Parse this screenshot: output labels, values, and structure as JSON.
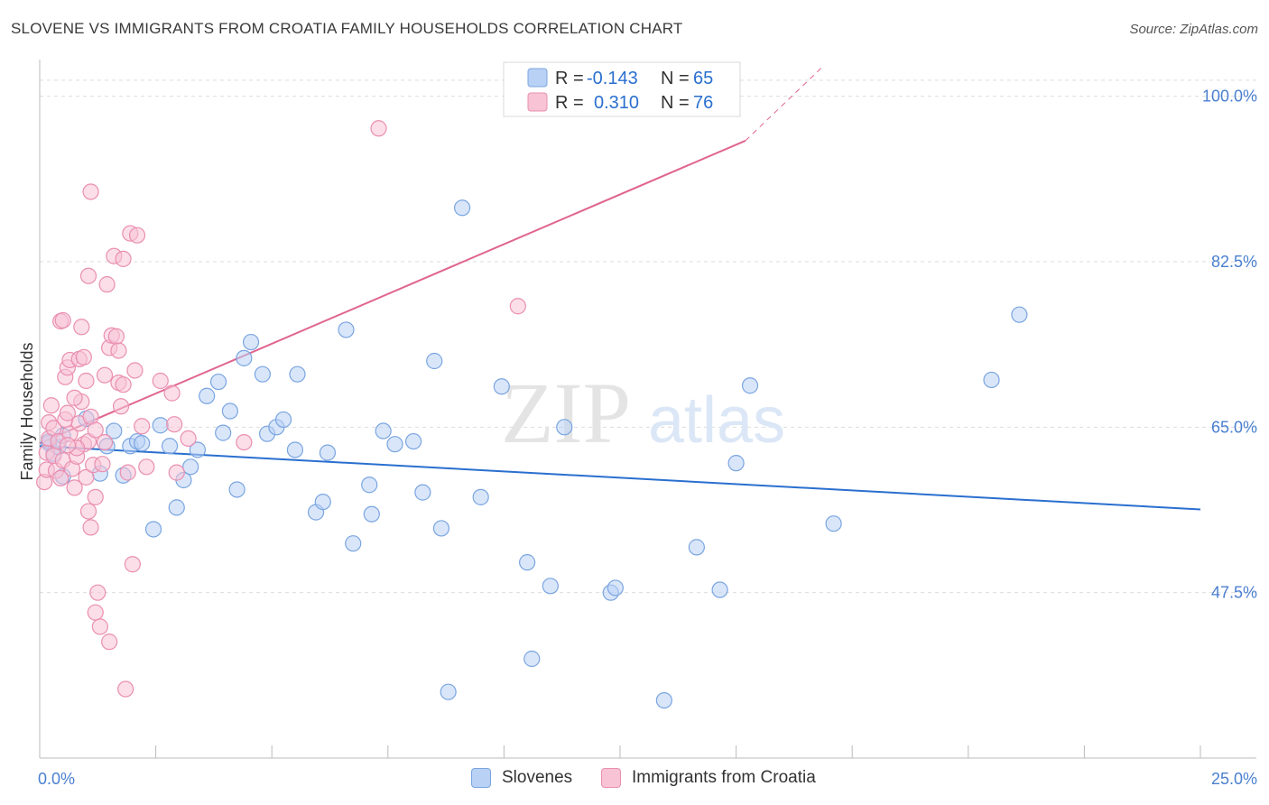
{
  "header": {
    "title": "SLOVENE VS IMMIGRANTS FROM CROATIA FAMILY HOUSEHOLDS CORRELATION CHART",
    "source": "Source: ZipAtlas.com"
  },
  "watermark": {
    "zip": "ZIP",
    "atlas": "atlas"
  },
  "colors": {
    "blue_fill": "#b9d1f5",
    "blue_stroke": "#7aa5e0",
    "blue_line": "#2a6fcf",
    "pink_fill": "#f8c3d5",
    "pink_stroke": "#ea8fb0",
    "pink_line": "#e0648f",
    "tick_text": "#4a7fd0",
    "grid": "#dddddd"
  },
  "legend": {
    "rows": [
      {
        "r_label": "R =",
        "r_value": "-0.143",
        "n_label": "N =",
        "n_value": "65"
      },
      {
        "r_label": "R =",
        "r_value": "0.310",
        "n_label": "N =",
        "n_value": "76"
      }
    ]
  },
  "bottom_legend": {
    "series1": "Slovenes",
    "series2": "Immigrants from Croatia"
  },
  "chart_data": {
    "type": "scatter",
    "title": "SLOVENE VS IMMIGRANTS FROM CROATIA FAMILY HOUSEHOLDS CORRELATION CHART",
    "xlabel": "",
    "ylabel": "Family Households",
    "xlim": [
      0,
      25
    ],
    "ylim": [
      30,
      103.5
    ],
    "x_ticks": [
      0,
      2.5,
      5,
      7.5,
      10,
      12.5,
      15,
      17.5,
      20,
      22.5,
      25
    ],
    "x_tick_labels": {
      "0": "0.0%",
      "25": "25.0%"
    },
    "y_ticks": [
      47.5,
      65.0,
      82.5,
      100.0
    ],
    "y_tick_labels": [
      "47.5%",
      "65.0%",
      "82.5%",
      "100.0%"
    ],
    "grid": true,
    "series": [
      {
        "name": "Slovenes",
        "R": -0.143,
        "N": 65,
        "trend": {
          "x0": 0,
          "y0": 63.0,
          "x1": 25,
          "y1": 56.3
        },
        "points": [
          [
            0.2,
            63.3
          ],
          [
            0.3,
            62.2
          ],
          [
            0.2,
            63.5
          ],
          [
            0.4,
            62.9
          ],
          [
            0.5,
            64.1
          ],
          [
            0.5,
            59.8
          ],
          [
            1.0,
            65.9
          ],
          [
            1.3,
            60.1
          ],
          [
            1.45,
            63.0
          ],
          [
            1.6,
            64.6
          ],
          [
            1.8,
            59.9
          ],
          [
            1.95,
            63.0
          ],
          [
            2.1,
            63.5
          ],
          [
            2.2,
            63.3
          ],
          [
            2.45,
            54.2
          ],
          [
            2.6,
            65.2
          ],
          [
            2.8,
            63.0
          ],
          [
            2.95,
            56.5
          ],
          [
            3.1,
            59.4
          ],
          [
            3.25,
            60.8
          ],
          [
            3.4,
            62.6
          ],
          [
            3.6,
            68.3
          ],
          [
            3.85,
            69.8
          ],
          [
            3.95,
            64.4
          ],
          [
            4.1,
            66.7
          ],
          [
            4.25,
            58.4
          ],
          [
            4.4,
            72.3
          ],
          [
            4.55,
            74.0
          ],
          [
            4.8,
            70.6
          ],
          [
            4.9,
            64.3
          ],
          [
            5.1,
            65.0
          ],
          [
            5.25,
            65.8
          ],
          [
            5.55,
            70.6
          ],
          [
            5.5,
            62.6
          ],
          [
            5.95,
            56.0
          ],
          [
            6.1,
            57.1
          ],
          [
            6.2,
            62.3
          ],
          [
            6.6,
            75.3
          ],
          [
            6.75,
            52.7
          ],
          [
            7.1,
            58.9
          ],
          [
            7.15,
            55.8
          ],
          [
            7.4,
            64.6
          ],
          [
            7.65,
            63.2
          ],
          [
            8.05,
            63.5
          ],
          [
            8.25,
            58.1
          ],
          [
            8.5,
            72.0
          ],
          [
            8.65,
            54.3
          ],
          [
            8.8,
            37.0
          ],
          [
            9.1,
            88.2
          ],
          [
            9.5,
            57.6
          ],
          [
            9.95,
            69.3
          ],
          [
            10.5,
            50.7
          ],
          [
            10.6,
            40.5
          ],
          [
            11.0,
            48.2
          ],
          [
            11.3,
            65.0
          ],
          [
            12.3,
            47.5
          ],
          [
            12.4,
            48.0
          ],
          [
            13.45,
            36.1
          ],
          [
            14.15,
            52.3
          ],
          [
            14.65,
            47.8
          ],
          [
            15.0,
            61.2
          ],
          [
            15.3,
            69.4
          ],
          [
            17.1,
            54.8
          ],
          [
            20.5,
            70.0
          ],
          [
            21.1,
            76.9
          ]
        ]
      },
      {
        "name": "Immigrants from Croatia",
        "R": 0.31,
        "N": 76,
        "trend": {
          "x0": 0,
          "y0": 63.3,
          "x1": 15.2,
          "y1": 95.3,
          "dash_x1": 16.9,
          "dash_y1": 103.3
        },
        "points": [
          [
            0.1,
            59.2
          ],
          [
            0.15,
            60.5
          ],
          [
            0.15,
            62.3
          ],
          [
            0.2,
            63.8
          ],
          [
            0.2,
            65.5
          ],
          [
            0.25,
            67.3
          ],
          [
            0.3,
            64.9
          ],
          [
            0.3,
            62.0
          ],
          [
            0.35,
            60.4
          ],
          [
            0.4,
            63.5
          ],
          [
            0.45,
            59.6
          ],
          [
            0.5,
            61.5
          ],
          [
            0.55,
            65.8
          ],
          [
            0.6,
            66.5
          ],
          [
            0.65,
            64.3
          ],
          [
            0.7,
            60.6
          ],
          [
            0.75,
            58.6
          ],
          [
            0.8,
            61.9
          ],
          [
            0.85,
            65.4
          ],
          [
            0.9,
            67.7
          ],
          [
            0.95,
            63.2
          ],
          [
            1.0,
            59.7
          ],
          [
            1.05,
            63.5
          ],
          [
            1.1,
            66.1
          ],
          [
            0.45,
            76.2
          ],
          [
            0.5,
            76.3
          ],
          [
            0.55,
            70.3
          ],
          [
            0.6,
            71.3
          ],
          [
            0.65,
            72.1
          ],
          [
            0.75,
            68.1
          ],
          [
            0.85,
            72.2
          ],
          [
            0.9,
            75.6
          ],
          [
            0.95,
            72.4
          ],
          [
            1.05,
            56.1
          ],
          [
            1.1,
            54.4
          ],
          [
            1.15,
            61.0
          ],
          [
            1.2,
            57.6
          ],
          [
            1.0,
            69.9
          ],
          [
            1.05,
            81.0
          ],
          [
            1.1,
            89.9
          ],
          [
            1.2,
            45.4
          ],
          [
            1.25,
            47.5
          ],
          [
            1.3,
            43.9
          ],
          [
            1.4,
            63.4
          ],
          [
            1.4,
            70.5
          ],
          [
            1.45,
            80.1
          ],
          [
            1.5,
            73.4
          ],
          [
            1.55,
            74.7
          ],
          [
            1.5,
            42.3
          ],
          [
            1.6,
            83.1
          ],
          [
            1.65,
            74.6
          ],
          [
            1.7,
            73.1
          ],
          [
            1.7,
            69.7
          ],
          [
            1.75,
            67.2
          ],
          [
            1.8,
            82.8
          ],
          [
            1.8,
            69.5
          ],
          [
            1.85,
            37.3
          ],
          [
            1.9,
            60.2
          ],
          [
            1.95,
            85.5
          ],
          [
            2.0,
            50.5
          ],
          [
            2.05,
            71.0
          ],
          [
            2.1,
            85.3
          ],
          [
            2.2,
            65.1
          ],
          [
            2.3,
            60.8
          ],
          [
            2.6,
            69.9
          ],
          [
            2.85,
            68.6
          ],
          [
            2.9,
            65.3
          ],
          [
            2.95,
            60.2
          ],
          [
            3.2,
            63.8
          ],
          [
            4.4,
            63.4
          ],
          [
            7.3,
            96.6
          ],
          [
            10.3,
            77.8
          ],
          [
            0.8,
            62.8
          ],
          [
            1.2,
            64.7
          ],
          [
            0.6,
            63.1
          ],
          [
            1.35,
            61.1
          ]
        ]
      }
    ]
  }
}
